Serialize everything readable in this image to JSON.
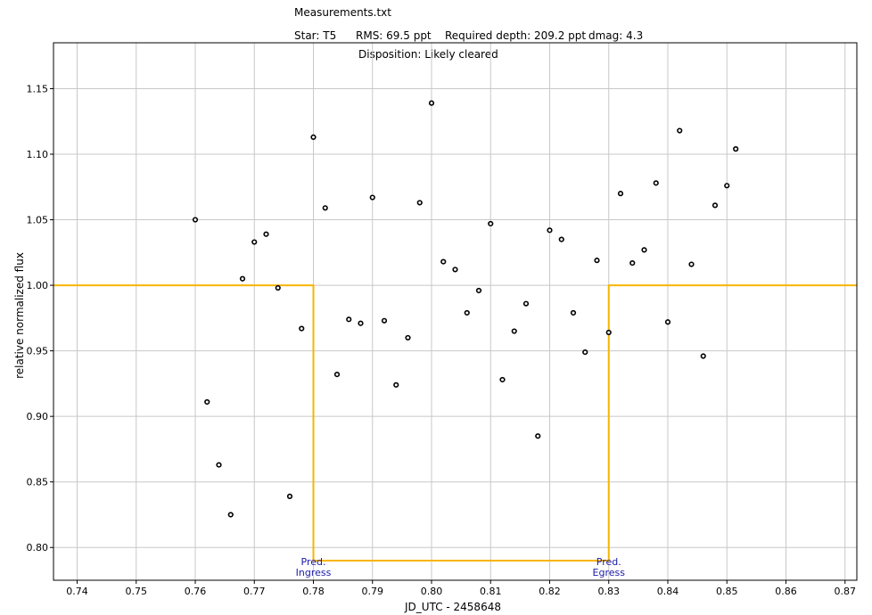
{
  "header": {
    "file_title": "Measurements.txt",
    "star": "Star: T5",
    "rms": "RMS: 69.5 ppt",
    "required_depth": "Required depth: 209.2 ppt",
    "dmag": "dmag: 4.3",
    "disposition": "Disposition: Likely cleared"
  },
  "colors": {
    "model_line": "#f7b500",
    "grid": "#c8c8c8",
    "annotation": "#1a1aa8",
    "points": "#000000"
  },
  "chart_data": {
    "type": "scatter",
    "xlabel": "JD_UTC - 2458648",
    "ylabel": "relative normalized flux",
    "xlim": [
      0.736,
      0.872
    ],
    "ylim": [
      0.775,
      1.185
    ],
    "xticks": [
      0.74,
      0.75,
      0.76,
      0.77,
      0.78,
      0.79,
      0.8,
      0.81,
      0.82,
      0.83,
      0.84,
      0.85,
      0.86,
      0.87
    ],
    "xtick_labels": [
      "0.74",
      "0.75",
      "0.76",
      "0.77",
      "0.78",
      "0.79",
      "0.80",
      "0.81",
      "0.82",
      "0.83",
      "0.84",
      "0.85",
      "0.86",
      "0.87"
    ],
    "yticks": [
      0.8,
      0.85,
      0.9,
      0.95,
      1.0,
      1.05,
      1.1,
      1.15
    ],
    "ytick_labels": [
      "0.80",
      "0.85",
      "0.90",
      "0.95",
      "1.00",
      "1.05",
      "1.10",
      "1.15"
    ],
    "grid": true,
    "points": [
      [
        0.76,
        1.05
      ],
      [
        0.762,
        0.911
      ],
      [
        0.764,
        0.863
      ],
      [
        0.766,
        0.825
      ],
      [
        0.768,
        1.005
      ],
      [
        0.77,
        1.033
      ],
      [
        0.772,
        1.039
      ],
      [
        0.774,
        0.998
      ],
      [
        0.776,
        0.839
      ],
      [
        0.778,
        0.967
      ],
      [
        0.78,
        1.113
      ],
      [
        0.782,
        1.059
      ],
      [
        0.784,
        0.932
      ],
      [
        0.786,
        0.974
      ],
      [
        0.788,
        0.971
      ],
      [
        0.79,
        1.067
      ],
      [
        0.792,
        0.973
      ],
      [
        0.794,
        0.924
      ],
      [
        0.796,
        0.96
      ],
      [
        0.798,
        1.063
      ],
      [
        0.8,
        1.139
      ],
      [
        0.802,
        1.018
      ],
      [
        0.804,
        1.012
      ],
      [
        0.806,
        0.979
      ],
      [
        0.808,
        0.996
      ],
      [
        0.81,
        1.047
      ],
      [
        0.812,
        0.928
      ],
      [
        0.814,
        0.965
      ],
      [
        0.816,
        0.986
      ],
      [
        0.818,
        0.885
      ],
      [
        0.82,
        1.042
      ],
      [
        0.822,
        1.035
      ],
      [
        0.824,
        0.979
      ],
      [
        0.826,
        0.949
      ],
      [
        0.828,
        1.019
      ],
      [
        0.83,
        0.964
      ],
      [
        0.832,
        1.07
      ],
      [
        0.834,
        1.017
      ],
      [
        0.836,
        1.027
      ],
      [
        0.838,
        1.078
      ],
      [
        0.84,
        0.972
      ],
      [
        0.842,
        1.118
      ],
      [
        0.844,
        1.016
      ],
      [
        0.846,
        0.946
      ],
      [
        0.848,
        1.061
      ],
      [
        0.85,
        1.076
      ],
      [
        0.8515,
        1.104
      ]
    ],
    "model": {
      "x": [
        0.736,
        0.78,
        0.78,
        0.83,
        0.83,
        0.872
      ],
      "y": [
        1.0,
        1.0,
        0.79,
        0.79,
        1.0,
        1.0
      ]
    },
    "annotations": [
      {
        "x": 0.78,
        "text1": "Pred.",
        "text2": "Ingress"
      },
      {
        "x": 0.83,
        "text1": "Pred.",
        "text2": "Egress"
      }
    ]
  }
}
